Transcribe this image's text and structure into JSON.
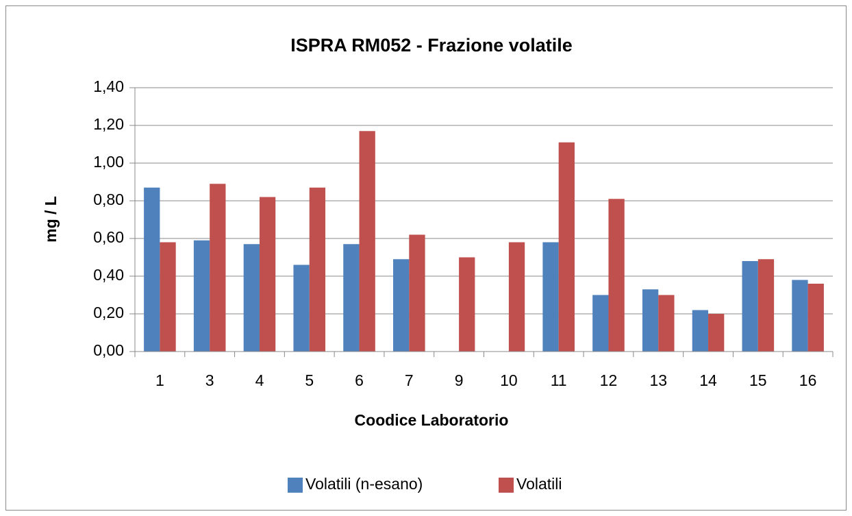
{
  "chart_data": {
    "type": "bar",
    "title": "ISPRA RM052  - Frazione volatile",
    "x_label": "Coodice Laboratorio",
    "y_label": "mg / L",
    "categories": [
      "1",
      "3",
      "4",
      "5",
      "6",
      "7",
      "9",
      "10",
      "11",
      "12",
      "13",
      "14",
      "15",
      "16"
    ],
    "series": [
      {
        "name": "Volatili (n-esano)",
        "color": "#4f81bd",
        "values": [
          0.87,
          0.59,
          0.57,
          0.46,
          0.57,
          0.49,
          null,
          null,
          0.58,
          0.3,
          0.33,
          0.22,
          0.48,
          0.38
        ]
      },
      {
        "name": "Volatili",
        "color": "#c0504d",
        "values": [
          0.58,
          0.89,
          0.82,
          0.87,
          1.17,
          0.62,
          0.5,
          0.58,
          1.11,
          0.81,
          0.3,
          0.2,
          0.49,
          0.36
        ]
      }
    ],
    "ylim": [
      0,
      1.4
    ],
    "yticks": [
      {
        "value": 0,
        "label": "0,00"
      },
      {
        "value": 0.2,
        "label": "0,20"
      },
      {
        "value": 0.4,
        "label": "0,40"
      },
      {
        "value": 0.6,
        "label": "0,60"
      },
      {
        "value": 0.8,
        "label": "0,80"
      },
      {
        "value": 1.0,
        "label": "1,00"
      },
      {
        "value": 1.2,
        "label": "1,20"
      },
      {
        "value": 1.4,
        "label": "1,40"
      }
    ],
    "grid": true,
    "legend": "bottom"
  }
}
